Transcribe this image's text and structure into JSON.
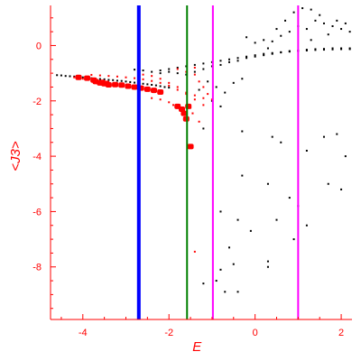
{
  "chart_data": {
    "type": "scatter",
    "title": "",
    "xlabel": "E",
    "ylabel": "<J3>",
    "xlim": [
      -4.75,
      2.25
    ],
    "ylim": [
      -9.9,
      1.45
    ],
    "x_ticks": [
      -4,
      -2,
      0,
      2
    ],
    "x_tick_labels": [
      "-4",
      "-2",
      "0",
      "2"
    ],
    "y_ticks": [
      0,
      -2,
      -4,
      -6,
      -8
    ],
    "y_tick_labels": [
      "0",
      "-2",
      "-4",
      "-6",
      "-8"
    ],
    "grid": false,
    "axis_color": "#ff0000",
    "vertical_lines": [
      {
        "x": -2.7,
        "color": "#0000ff"
      },
      {
        "x": -1.58,
        "color": "#008000"
      },
      {
        "x": -0.98,
        "color": "#ff00ff"
      },
      {
        "x": 1.0,
        "color": "#ff00ff"
      }
    ],
    "series": [
      {
        "color": "#000000",
        "marker": "dot",
        "points": [
          [
            -4.6,
            -1.07
          ],
          [
            -4.5,
            -1.08
          ],
          [
            -4.4,
            -1.1
          ],
          [
            -4.3,
            -1.11
          ],
          [
            -4.2,
            -1.12
          ],
          [
            -4.1,
            -1.14
          ],
          [
            -4.0,
            -1.15
          ],
          [
            -3.9,
            -1.16
          ],
          [
            -3.8,
            -1.18
          ],
          [
            -3.7,
            -1.2
          ],
          [
            -3.6,
            -1.21
          ],
          [
            -3.5,
            -1.22
          ],
          [
            -3.4,
            -1.24
          ],
          [
            -3.3,
            -1.25
          ],
          [
            -3.2,
            -1.27
          ],
          [
            -3.1,
            -1.28
          ],
          [
            -3.0,
            -1.3
          ],
          [
            -2.9,
            -1.32
          ],
          [
            -2.8,
            -1.34
          ],
          [
            -2.7,
            -1.36
          ],
          [
            -2.6,
            -1.38
          ],
          [
            -2.5,
            -1.4
          ],
          [
            -2.4,
            -1.42
          ],
          [
            -2.3,
            -1.44
          ],
          [
            -2.2,
            -1.47
          ],
          [
            -2.1,
            -1.5
          ],
          [
            -2.0,
            -1.52
          ],
          [
            -2.8,
            -0.87
          ],
          [
            -2.6,
            -0.9
          ],
          [
            -2.4,
            -0.95
          ],
          [
            -2.2,
            -0.9
          ],
          [
            -2.0,
            -0.85
          ],
          [
            -1.8,
            -0.8
          ],
          [
            -1.6,
            -0.75
          ],
          [
            -1.4,
            -0.7
          ],
          [
            -1.2,
            -0.65
          ],
          [
            -1.0,
            -0.6
          ],
          [
            -0.8,
            -0.55
          ],
          [
            -0.6,
            -0.5
          ],
          [
            -0.4,
            -0.45
          ],
          [
            -0.2,
            -0.4
          ],
          [
            0.0,
            -0.35
          ],
          [
            0.2,
            -0.3
          ],
          [
            0.4,
            -0.27
          ],
          [
            0.6,
            -0.24
          ],
          [
            0.8,
            -0.2
          ],
          [
            1.0,
            -0.18
          ],
          [
            1.2,
            -0.15
          ],
          [
            1.4,
            -0.13
          ],
          [
            1.6,
            -0.12
          ],
          [
            1.8,
            -0.1
          ],
          [
            2.0,
            -0.1
          ],
          [
            2.2,
            -0.1
          ],
          [
            -2.2,
            -1.0
          ],
          [
            -2.0,
            -0.95
          ],
          [
            -1.8,
            -1.0
          ],
          [
            -1.6,
            -1.05
          ],
          [
            -1.4,
            -0.95
          ],
          [
            -1.2,
            -0.85
          ],
          [
            -1.0,
            -0.75
          ],
          [
            -0.8,
            -0.7
          ],
          [
            -0.6,
            -0.6
          ],
          [
            -0.4,
            -0.55
          ],
          [
            -0.2,
            -0.45
          ],
          [
            0.0,
            -0.4
          ],
          [
            0.2,
            -0.35
          ],
          [
            0.4,
            -0.3
          ],
          [
            0.6,
            -0.25
          ],
          [
            0.8,
            -0.22
          ],
          [
            1.0,
            -0.2
          ],
          [
            1.2,
            -0.18
          ],
          [
            1.4,
            -0.16
          ],
          [
            1.6,
            -0.15
          ],
          [
            1.8,
            -0.14
          ],
          [
            2.0,
            -0.13
          ],
          [
            2.2,
            -0.13
          ],
          [
            0.0,
            0.1
          ],
          [
            0.2,
            0.2
          ],
          [
            0.4,
            0.15
          ],
          [
            0.6,
            0.35
          ],
          [
            0.8,
            0.5
          ],
          [
            1.0,
            0.7
          ],
          [
            1.2,
            0.6
          ],
          [
            1.4,
            0.9
          ],
          [
            1.6,
            0.8
          ],
          [
            1.8,
            0.7
          ],
          [
            2.0,
            0.6
          ],
          [
            2.2,
            0.5
          ],
          [
            0.9,
            1.2
          ],
          [
            1.1,
            1.35
          ],
          [
            1.3,
            1.3
          ],
          [
            1.5,
            1.1
          ],
          [
            0.7,
            0.9
          ],
          [
            0.5,
            0.6
          ],
          [
            -0.2,
            0.3
          ],
          [
            1.9,
            0.9
          ],
          [
            2.1,
            0.8
          ],
          [
            1.7,
            0.4
          ],
          [
            1.3,
            0.2
          ],
          [
            0.3,
            -0.1
          ],
          [
            -1.1,
            -1.3
          ],
          [
            -0.9,
            -1.5
          ],
          [
            -0.7,
            -1.7
          ],
          [
            -0.5,
            -1.35
          ],
          [
            -0.3,
            -1.2
          ],
          [
            -1.3,
            -1.6
          ],
          [
            -1.0,
            -2.0
          ],
          [
            -0.8,
            -2.2
          ],
          [
            -1.2,
            -3.0
          ],
          [
            -0.3,
            -3.1
          ],
          [
            0.4,
            -3.3
          ],
          [
            0.6,
            -3.5
          ],
          [
            1.2,
            -3.8
          ],
          [
            1.9,
            -3.2
          ],
          [
            1.6,
            -3.3
          ],
          [
            2.1,
            -4.0
          ],
          [
            -0.3,
            -4.7
          ],
          [
            0.3,
            -5.0
          ],
          [
            1.7,
            -5.0
          ],
          [
            2.0,
            -5.2
          ],
          [
            0.8,
            -5.5
          ],
          [
            1.0,
            -5.8
          ],
          [
            -0.8,
            -6.0
          ],
          [
            -0.4,
            -6.3
          ],
          [
            0.5,
            -6.3
          ],
          [
            1.2,
            -6.5
          ],
          [
            -0.1,
            -6.7
          ],
          [
            0.9,
            -7.0
          ],
          [
            -0.6,
            -7.3
          ],
          [
            -0.5,
            -7.9
          ],
          [
            0.3,
            -7.8
          ],
          [
            -0.8,
            -8.1
          ],
          [
            0.3,
            -8.0
          ],
          [
            -1.2,
            -8.6
          ],
          [
            -0.7,
            -8.9
          ],
          [
            -0.4,
            -8.9
          ],
          [
            -0.9,
            -8.5
          ]
        ]
      },
      {
        "color": "#ff0000",
        "marker": "dot",
        "points": [
          [
            -4.2,
            -1.15
          ],
          [
            -4.0,
            -1.2
          ],
          [
            -3.9,
            -1.22
          ],
          [
            -3.8,
            -1.28
          ],
          [
            -3.7,
            -1.33
          ],
          [
            -3.6,
            -1.38
          ],
          [
            -3.5,
            -1.42
          ],
          [
            -3.4,
            -1.45
          ],
          [
            -3.3,
            -1.44
          ],
          [
            -3.2,
            -1.45
          ],
          [
            -3.1,
            -1.46
          ],
          [
            -3.0,
            -1.48
          ],
          [
            -2.9,
            -1.5
          ],
          [
            -2.8,
            -1.52
          ],
          [
            -2.7,
            -1.55
          ],
          [
            -2.6,
            -1.57
          ],
          [
            -2.5,
            -1.6
          ],
          [
            -2.4,
            -1.63
          ],
          [
            -2.3,
            -1.65
          ],
          [
            -2.2,
            -1.7
          ],
          [
            -3.8,
            -1.06
          ],
          [
            -3.6,
            -1.08
          ],
          [
            -3.4,
            -1.1
          ],
          [
            -3.2,
            -1.12
          ],
          [
            -3.0,
            -1.15
          ],
          [
            -2.8,
            -1.18
          ],
          [
            -2.6,
            -1.22
          ],
          [
            -2.4,
            -1.28
          ],
          [
            -2.2,
            -1.35
          ],
          [
            -2.0,
            -1.45
          ],
          [
            -1.8,
            -1.6
          ],
          [
            -1.6,
            -1.75
          ],
          [
            -2.6,
            -1.05
          ],
          [
            -2.4,
            -1.1
          ],
          [
            -2.2,
            -1.2
          ],
          [
            -2.0,
            -1.35
          ],
          [
            -1.8,
            -1.5
          ],
          [
            -1.6,
            -1.7
          ],
          [
            -1.4,
            -1.95
          ],
          [
            -1.2,
            -2.15
          ],
          [
            -2.4,
            -1.9
          ],
          [
            -2.2,
            -1.95
          ],
          [
            -2.0,
            -2.05
          ],
          [
            -1.9,
            -2.15
          ],
          [
            -1.8,
            -2.25
          ],
          [
            -1.7,
            -2.4
          ],
          [
            -1.6,
            -2.5
          ],
          [
            -1.5,
            -2.25
          ],
          [
            -1.8,
            -0.85
          ],
          [
            -1.6,
            -0.95
          ],
          [
            -1.4,
            -1.05
          ],
          [
            -1.3,
            -1.3
          ],
          [
            -1.2,
            -1.5
          ],
          [
            -1.1,
            -1.75
          ],
          [
            -1.0,
            -1.95
          ],
          [
            -1.4,
            -1.8
          ],
          [
            -1.2,
            -1.9
          ],
          [
            -1.4,
            -0.8
          ],
          [
            -1.55,
            -2.25
          ],
          [
            -1.45,
            -2.45
          ],
          [
            -1.3,
            -2.75
          ],
          [
            -1.6,
            -2.7
          ],
          [
            -1.5,
            -3.65
          ],
          [
            -1.4,
            -7.45
          ]
        ]
      },
      {
        "color": "#ff0000",
        "marker": "large",
        "points": [
          [
            -4.1,
            -1.15
          ],
          [
            -3.9,
            -1.18
          ],
          [
            -3.75,
            -1.25
          ],
          [
            -3.6,
            -1.35
          ],
          [
            -3.5,
            -1.38
          ],
          [
            -3.4,
            -1.42
          ],
          [
            -3.25,
            -1.41
          ],
          [
            -3.1,
            -1.43
          ],
          [
            -2.95,
            -1.47
          ],
          [
            -2.8,
            -1.5
          ],
          [
            -2.65,
            -1.54
          ],
          [
            -2.5,
            -1.58
          ],
          [
            -2.35,
            -1.62
          ],
          [
            -2.2,
            -1.68
          ],
          [
            -3.7,
            -1.3
          ],
          [
            -3.55,
            -1.33
          ],
          [
            -3.45,
            -1.37
          ],
          [
            -1.8,
            -2.2
          ],
          [
            -1.7,
            -2.3
          ],
          [
            -1.65,
            -2.45
          ],
          [
            -1.55,
            -2.2
          ],
          [
            -1.6,
            -2.65
          ],
          [
            -1.5,
            -3.65
          ]
        ]
      }
    ]
  }
}
